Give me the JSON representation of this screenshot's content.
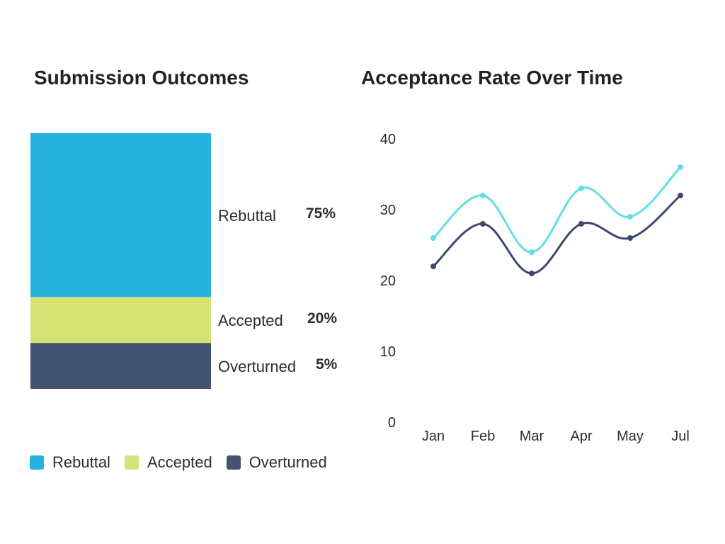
{
  "titles": {
    "left": "Submission Outcomes",
    "right": "Acceptance Rate Over Time"
  },
  "colors": {
    "rebuttal": "#27b3e0",
    "accepted": "#d5e374",
    "overturned": "#435471",
    "series_light": "#62dfe6",
    "series_dark": "#3c4a6b"
  },
  "legend": [
    {
      "label": "Rebuttal",
      "color": "#27b3e0"
    },
    {
      "label": "Accepted",
      "color": "#d5e374"
    },
    {
      "label": "Overturned",
      "color": "#435471"
    }
  ],
  "chart_data": [
    {
      "type": "bar",
      "stacked": true,
      "title": "Submission Outcomes",
      "categories": [
        "Rebuttal",
        "Accepted",
        "Overturned"
      ],
      "values": [
        75,
        20,
        5
      ],
      "value_labels": [
        "75%",
        "20%",
        "5%"
      ],
      "unit": "%",
      "colors": [
        "#27b3e0",
        "#d5e374",
        "#435471"
      ],
      "legend_position": "bottom"
    },
    {
      "type": "line",
      "title": "Acceptance Rate Over Time",
      "categories": [
        "Jan",
        "Feb",
        "Mar",
        "Apr",
        "May",
        "Jul"
      ],
      "series": [
        {
          "values": [
            26,
            32,
            24,
            33,
            29,
            36
          ],
          "color": "#62dfe6"
        },
        {
          "values": [
            22,
            28,
            21,
            28,
            26,
            32
          ],
          "color": "#3c4a6b"
        }
      ],
      "ylim": [
        0,
        40
      ],
      "yticks": [
        0,
        10,
        20,
        30,
        40
      ],
      "smooth": true,
      "grid": false
    }
  ]
}
